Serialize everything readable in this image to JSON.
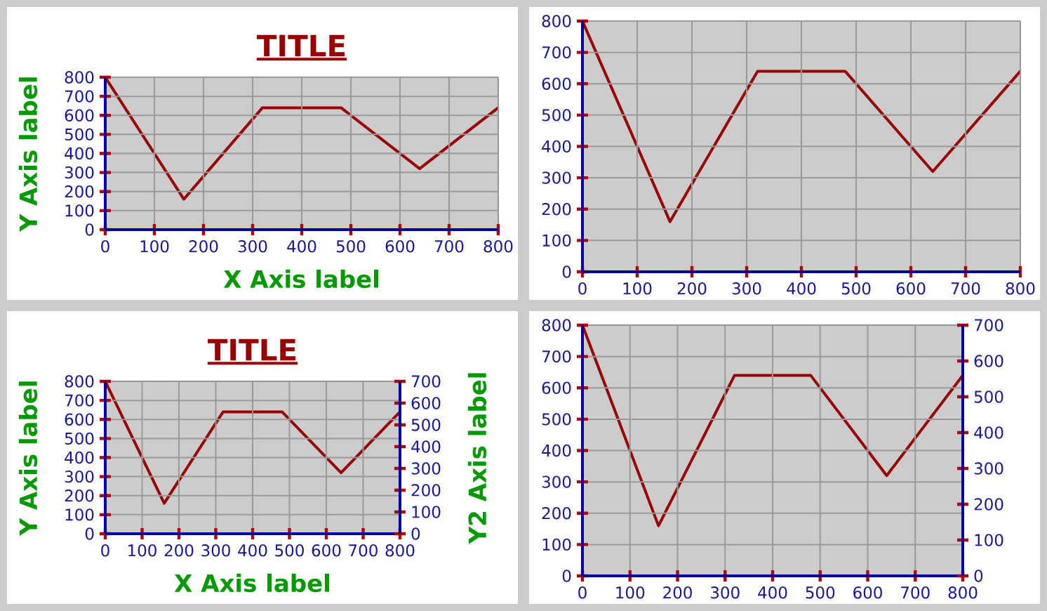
{
  "chart_data": [
    {
      "type": "line",
      "title": "TITLE",
      "xlabel": "X Axis label",
      "ylabel": "Y Axis label",
      "x": [
        0,
        160,
        320,
        480,
        640,
        800
      ],
      "series": [
        {
          "color": "#990000",
          "values": [
            800,
            160,
            640,
            640,
            320,
            640
          ]
        }
      ],
      "xlim": [
        0,
        800
      ],
      "ylim": [
        0,
        800
      ],
      "xticks": [
        0,
        100,
        200,
        300,
        400,
        500,
        600,
        700,
        800
      ],
      "yticks": [
        0,
        100,
        200,
        300,
        400,
        500,
        600,
        700,
        800
      ],
      "grid": true
    },
    {
      "type": "line",
      "x": [
        0,
        160,
        320,
        480,
        640,
        800
      ],
      "series": [
        {
          "color": "#990000",
          "values": [
            800,
            160,
            640,
            640,
            320,
            640
          ]
        }
      ],
      "xlim": [
        0,
        800
      ],
      "ylim": [
        0,
        800
      ],
      "xticks": [
        0,
        100,
        200,
        300,
        400,
        500,
        600,
        700,
        800
      ],
      "yticks": [
        0,
        100,
        200,
        300,
        400,
        500,
        600,
        700,
        800
      ],
      "grid": true
    },
    {
      "type": "line",
      "title": "TITLE",
      "xlabel": "X Axis label",
      "ylabel": "Y Axis label",
      "y2label": "Y2 Axis label",
      "x": [
        0,
        160,
        320,
        480,
        640,
        800
      ],
      "series": [
        {
          "color": "#990000",
          "values": [
            800,
            160,
            640,
            640,
            320,
            640
          ]
        }
      ],
      "xlim": [
        0,
        800
      ],
      "ylim": [
        0,
        800
      ],
      "y2lim": [
        0,
        700
      ],
      "xticks": [
        0,
        100,
        200,
        300,
        400,
        500,
        600,
        700,
        800
      ],
      "yticks": [
        0,
        100,
        200,
        300,
        400,
        500,
        600,
        700,
        800
      ],
      "y2ticks": [
        0,
        100,
        200,
        300,
        400,
        500,
        600,
        700
      ],
      "grid": true
    },
    {
      "type": "line",
      "x": [
        0,
        160,
        320,
        480,
        640,
        800
      ],
      "series": [
        {
          "color": "#990000",
          "values": [
            800,
            160,
            640,
            640,
            320,
            640
          ]
        }
      ],
      "xlim": [
        0,
        800
      ],
      "ylim": [
        0,
        800
      ],
      "y2lim": [
        0,
        700
      ],
      "xticks": [
        0,
        100,
        200,
        300,
        400,
        500,
        600,
        700,
        800
      ],
      "yticks": [
        0,
        100,
        200,
        300,
        400,
        500,
        600,
        700,
        800
      ],
      "y2ticks": [
        0,
        100,
        200,
        300,
        400,
        500,
        600,
        700
      ],
      "grid": true
    }
  ]
}
